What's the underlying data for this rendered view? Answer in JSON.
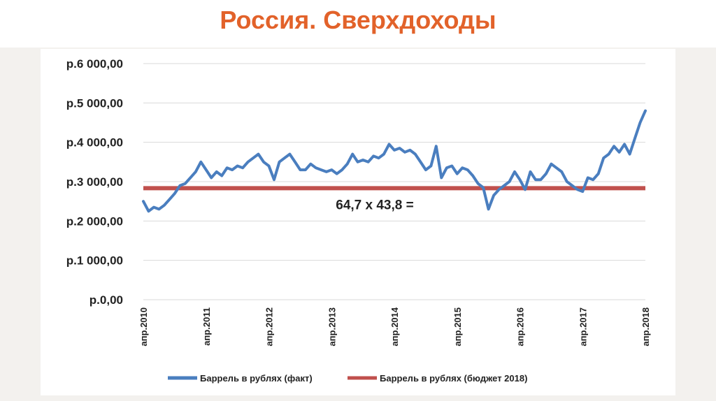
{
  "slide": {
    "title": "Россия. Сверхдоходы"
  },
  "chart_data": {
    "type": "line",
    "title": "",
    "xlabel": "",
    "ylabel": "",
    "ylim": [
      0,
      6000
    ],
    "yticks": [
      0,
      1000,
      2000,
      3000,
      4000,
      5000,
      6000
    ],
    "ytick_labels": [
      "р.0,00",
      "р.1 000,00",
      "р.2 000,00",
      "р.3 000,00",
      "р.4 000,00",
      "р.5 000,00",
      "р.6 000,00"
    ],
    "xlim": [
      "2010-04",
      "2018-04"
    ],
    "xtick_labels": [
      "апр.2010",
      "апр.2011",
      "апр.2012",
      "апр.2013",
      "апр.2014",
      "апр.2015",
      "апр.2016",
      "апр.2017",
      "апр.2018"
    ],
    "grid": true,
    "legend_position": "bottom",
    "annotation": "64,7 х 43,8 =",
    "colors": {
      "fact": "#4a7ebf",
      "budget": "#c0504d",
      "grid": "#d9d9d9"
    },
    "series": [
      {
        "name": "Баррель в рублях (факт)",
        "x": [
          "2010-04",
          "2010-05",
          "2010-06",
          "2010-07",
          "2010-08",
          "2010-09",
          "2010-10",
          "2010-11",
          "2010-12",
          "2011-01",
          "2011-02",
          "2011-03",
          "2011-04",
          "2011-05",
          "2011-06",
          "2011-07",
          "2011-08",
          "2011-09",
          "2011-10",
          "2011-11",
          "2011-12",
          "2012-01",
          "2012-02",
          "2012-03",
          "2012-04",
          "2012-05",
          "2012-06",
          "2012-07",
          "2012-08",
          "2012-09",
          "2012-10",
          "2012-11",
          "2012-12",
          "2013-01",
          "2013-02",
          "2013-03",
          "2013-04",
          "2013-05",
          "2013-06",
          "2013-07",
          "2013-08",
          "2013-09",
          "2013-10",
          "2013-11",
          "2013-12",
          "2014-01",
          "2014-02",
          "2014-03",
          "2014-04",
          "2014-05",
          "2014-06",
          "2014-07",
          "2014-08",
          "2014-09",
          "2014-10",
          "2014-11",
          "2014-12",
          "2015-01",
          "2015-02",
          "2015-03",
          "2015-04",
          "2015-05",
          "2015-06",
          "2015-07",
          "2015-08",
          "2015-09",
          "2015-10",
          "2015-11",
          "2015-12",
          "2016-01",
          "2016-02",
          "2016-03",
          "2016-04",
          "2016-05",
          "2016-06",
          "2016-07",
          "2016-08",
          "2016-09",
          "2016-10",
          "2016-11",
          "2016-12",
          "2017-01",
          "2017-02",
          "2017-03",
          "2017-04",
          "2017-05",
          "2017-06",
          "2017-07",
          "2017-08",
          "2017-09",
          "2017-10",
          "2017-11",
          "2017-12",
          "2018-01",
          "2018-02",
          "2018-03",
          "2018-04"
        ],
        "values": [
          2500,
          2250,
          2350,
          2300,
          2400,
          2550,
          2700,
          2900,
          2950,
          3100,
          3250,
          3500,
          3300,
          3100,
          3250,
          3150,
          3350,
          3300,
          3400,
          3350,
          3500,
          3600,
          3700,
          3500,
          3400,
          3050,
          3500,
          3600,
          3700,
          3500,
          3300,
          3300,
          3450,
          3350,
          3300,
          3250,
          3300,
          3200,
          3300,
          3450,
          3700,
          3500,
          3550,
          3500,
          3650,
          3600,
          3700,
          3950,
          3800,
          3850,
          3750,
          3800,
          3700,
          3500,
          3300,
          3400,
          3900,
          3100,
          3350,
          3400,
          3200,
          3350,
          3300,
          3150,
          2950,
          2850,
          2300,
          2650,
          2800,
          2900,
          3000,
          3250,
          3050,
          2800,
          3250,
          3050,
          3050,
          3200,
          3450,
          3350,
          3250,
          3000,
          2900,
          2800,
          2750,
          3100,
          3050,
          3200,
          3600,
          3700,
          3900,
          3750,
          3950,
          3700,
          4100,
          4500,
          4800
        ]
      },
      {
        "name": "Баррель в рублях (бюджет 2018)",
        "x": [
          "2010-04",
          "2018-04"
        ],
        "values": [
          2834,
          2834
        ]
      }
    ]
  }
}
